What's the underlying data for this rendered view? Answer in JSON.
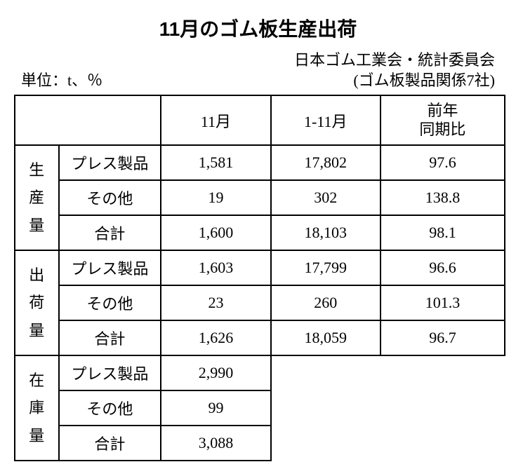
{
  "title": "11月のゴム板生産出荷",
  "unit_label": "単位：t、％",
  "source_line1": "日本ゴム工業会・統計委員会",
  "source_line2": "(ゴム板製品関係7社)",
  "columns": {
    "nov": "11月",
    "cum": "1-11月",
    "yoy_line1": "前年",
    "yoy_line2": "同期比"
  },
  "groups": {
    "production": "生産量",
    "shipment": "出荷量",
    "inventory": "在庫量"
  },
  "rows": {
    "press": "プレス製品",
    "other": "その他",
    "total": "合計"
  },
  "data": {
    "production": {
      "press": {
        "nov": "1,581",
        "cum": "17,802",
        "yoy": "97.6"
      },
      "other": {
        "nov": "19",
        "cum": "302",
        "yoy": "138.8"
      },
      "total": {
        "nov": "1,600",
        "cum": "18,103",
        "yoy": "98.1"
      }
    },
    "shipment": {
      "press": {
        "nov": "1,603",
        "cum": "17,799",
        "yoy": "96.6"
      },
      "other": {
        "nov": "23",
        "cum": "260",
        "yoy": "101.3"
      },
      "total": {
        "nov": "1,626",
        "cum": "18,059",
        "yoy": "96.7"
      }
    },
    "inventory": {
      "press": {
        "nov": "2,990"
      },
      "other": {
        "nov": "99"
      },
      "total": {
        "nov": "3,088"
      }
    }
  },
  "styling": {
    "background_color": "#ffffff",
    "text_color": "#000000",
    "border_color": "#000000",
    "title_fontsize": 28,
    "body_fontsize": 22,
    "border_width": 2
  }
}
